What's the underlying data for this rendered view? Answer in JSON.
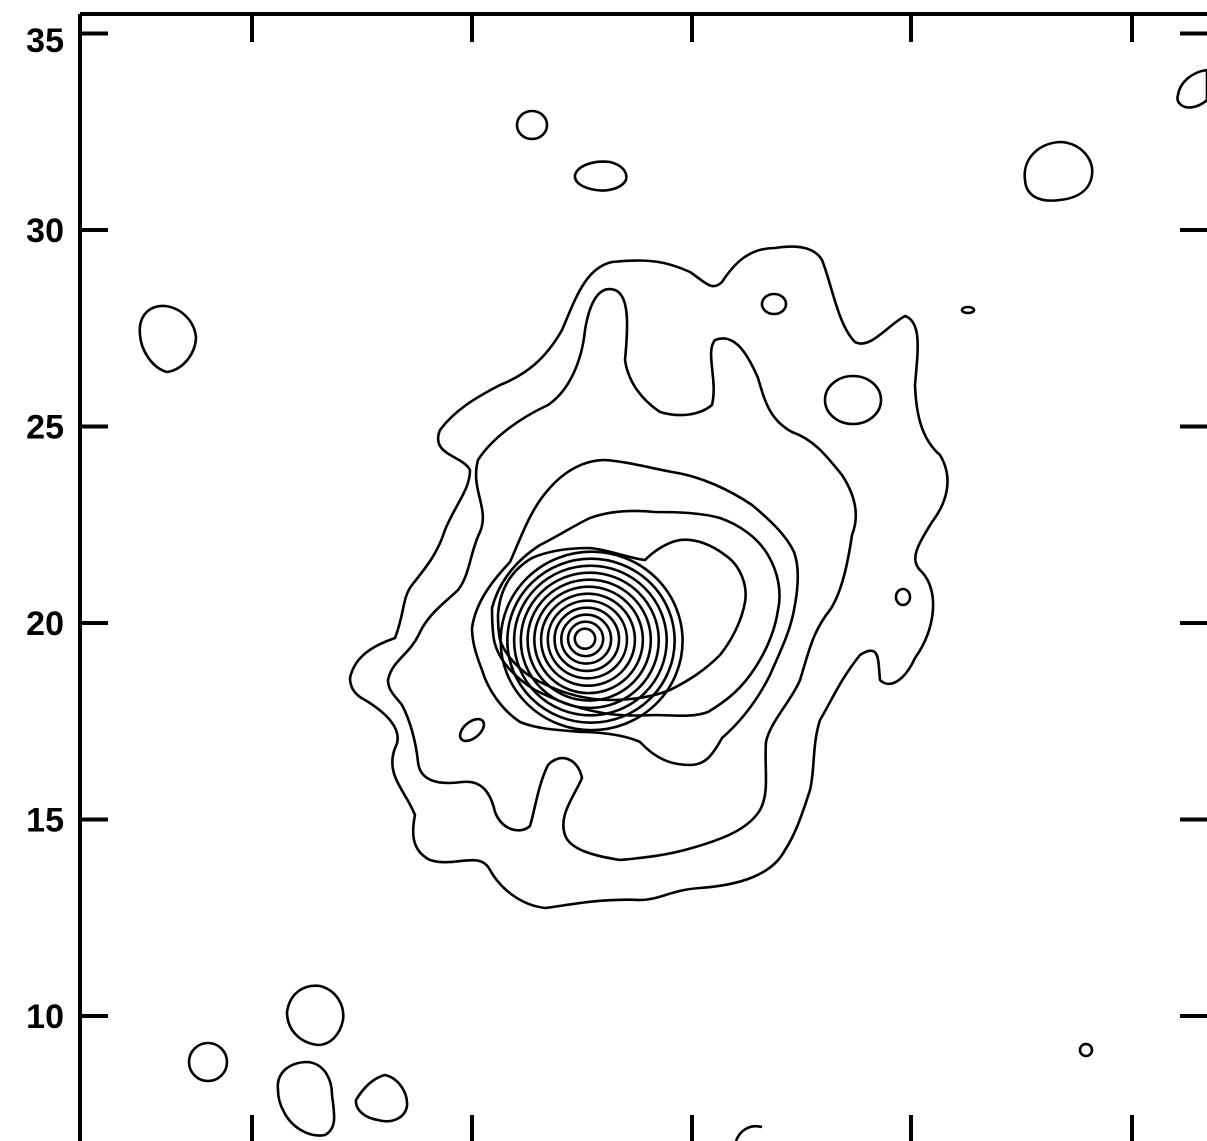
{
  "chart_data": {
    "type": "contour",
    "title": "",
    "xlabel": "",
    "ylabel": "",
    "yticks": [
      "10",
      "15",
      "20",
      "25",
      "30",
      "35"
    ],
    "ytick_values": [
      10,
      15,
      20,
      25,
      30,
      35
    ],
    "ylim": [
      7.1,
      35.5
    ],
    "xtick_labels_visible": false,
    "grid": false,
    "legend": "none",
    "line_color": "#000000",
    "contour_peak": {
      "y": 19.6
    },
    "peak_level_count": 12
  }
}
